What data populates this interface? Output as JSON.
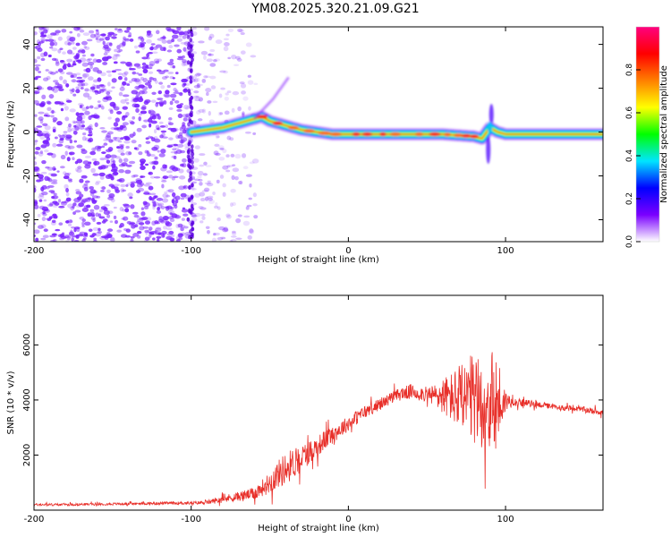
{
  "title": "YM08.2025.320.21.09.G21",
  "chart_data": [
    {
      "type": "heatmap",
      "title": "YM08.2025.320.21.09.G21",
      "xlabel": "Height of straight line (km)",
      "ylabel": "Frequency (Hz)",
      "xlim": [
        -200,
        162
      ],
      "ylim": [
        -50,
        48
      ],
      "xticks": [
        -200,
        -100,
        0,
        100
      ],
      "yticks": [
        -40,
        -20,
        0,
        20,
        40
      ],
      "xtick_labels": [
        "-200",
        "-100",
        "0",
        "100"
      ],
      "ytick_labels": [
        "-40",
        "-20",
        "0",
        "20",
        "40"
      ],
      "colorbar": {
        "label": "Normalized spectral amplitude",
        "range": [
          0,
          1
        ],
        "ticks": [
          0.0,
          0.2,
          0.4,
          0.6,
          0.8
        ],
        "tick_labels": [
          "0.0",
          "0.2",
          "0.4",
          "0.6",
          "0.8"
        ],
        "colormap": [
          "#ffffff",
          "#7a00ff",
          "#0000ff",
          "#00e5ff",
          "#00ff00",
          "#ffff00",
          "#ff7f00",
          "#ff0000",
          "#ff007f"
        ]
      },
      "ridge": {
        "x": [
          -100,
          -90,
          -80,
          -70,
          -60,
          -55,
          -50,
          -40,
          -30,
          -20,
          -10,
          0,
          20,
          40,
          60,
          80,
          85,
          88,
          90,
          95,
          100,
          162
        ],
        "freq": [
          0,
          1,
          2,
          4,
          6,
          7,
          5,
          3,
          1,
          0,
          -1,
          -1,
          -1,
          -1,
          -1,
          -2,
          -3,
          0,
          2,
          0,
          -1,
          -1
        ]
      },
      "noise_region": [
        -200,
        -100
      ],
      "colors": {
        "noise": "#7a22ff"
      }
    },
    {
      "type": "line",
      "xlabel": "Height of straight line (km)",
      "ylabel": "SNR (10 * v/v)",
      "xlim": [
        -200,
        162
      ],
      "ylim": [
        0,
        7800
      ],
      "xticks": [
        -200,
        -100,
        0,
        100
      ],
      "yticks": [
        2000,
        4000,
        6000
      ],
      "xtick_labels": [
        "-200",
        "-100",
        "0",
        "100"
      ],
      "ytick_labels": [
        "2000",
        "4000",
        "6000"
      ],
      "series": [
        {
          "name": "SNR",
          "color": "#e8302a",
          "x": [
            -200,
            -180,
            -160,
            -140,
            -120,
            -100,
            -90,
            -80,
            -70,
            -60,
            -50,
            -45,
            -40,
            -35,
            -30,
            -25,
            -20,
            -15,
            -10,
            -5,
            0,
            5,
            10,
            15,
            20,
            25,
            30,
            35,
            40,
            45,
            50,
            55,
            60,
            65,
            70,
            75,
            80,
            85,
            90,
            95,
            100,
            105,
            110,
            120,
            130,
            140,
            150,
            162
          ],
          "y": [
            200,
            200,
            220,
            230,
            250,
            260,
            280,
            400,
            500,
            600,
            1000,
            1300,
            1500,
            1700,
            1900,
            2100,
            2300,
            2550,
            2750,
            2950,
            3150,
            3350,
            3550,
            3700,
            3850,
            4000,
            4150,
            4250,
            4300,
            4250,
            4200,
            4150,
            4150,
            4100,
            4050,
            4000,
            3950,
            3900,
            3900,
            3900,
            3950,
            3950,
            3900,
            3850,
            3750,
            3700,
            3650,
            3550
          ],
          "amplitude": [
            80,
            80,
            80,
            80,
            90,
            100,
            120,
            250,
            300,
            400,
            700,
            900,
            1100,
            1000,
            900,
            800,
            700,
            650,
            600,
            550,
            500,
            480,
            450,
            400,
            380,
            380,
            400,
            450,
            500,
            500,
            500,
            800,
            1200,
            1600,
            2200,
            3000,
            3000,
            3000,
            3400,
            3300,
            700,
            300,
            250,
            200,
            180,
            180,
            200,
            200
          ]
        }
      ]
    }
  ]
}
